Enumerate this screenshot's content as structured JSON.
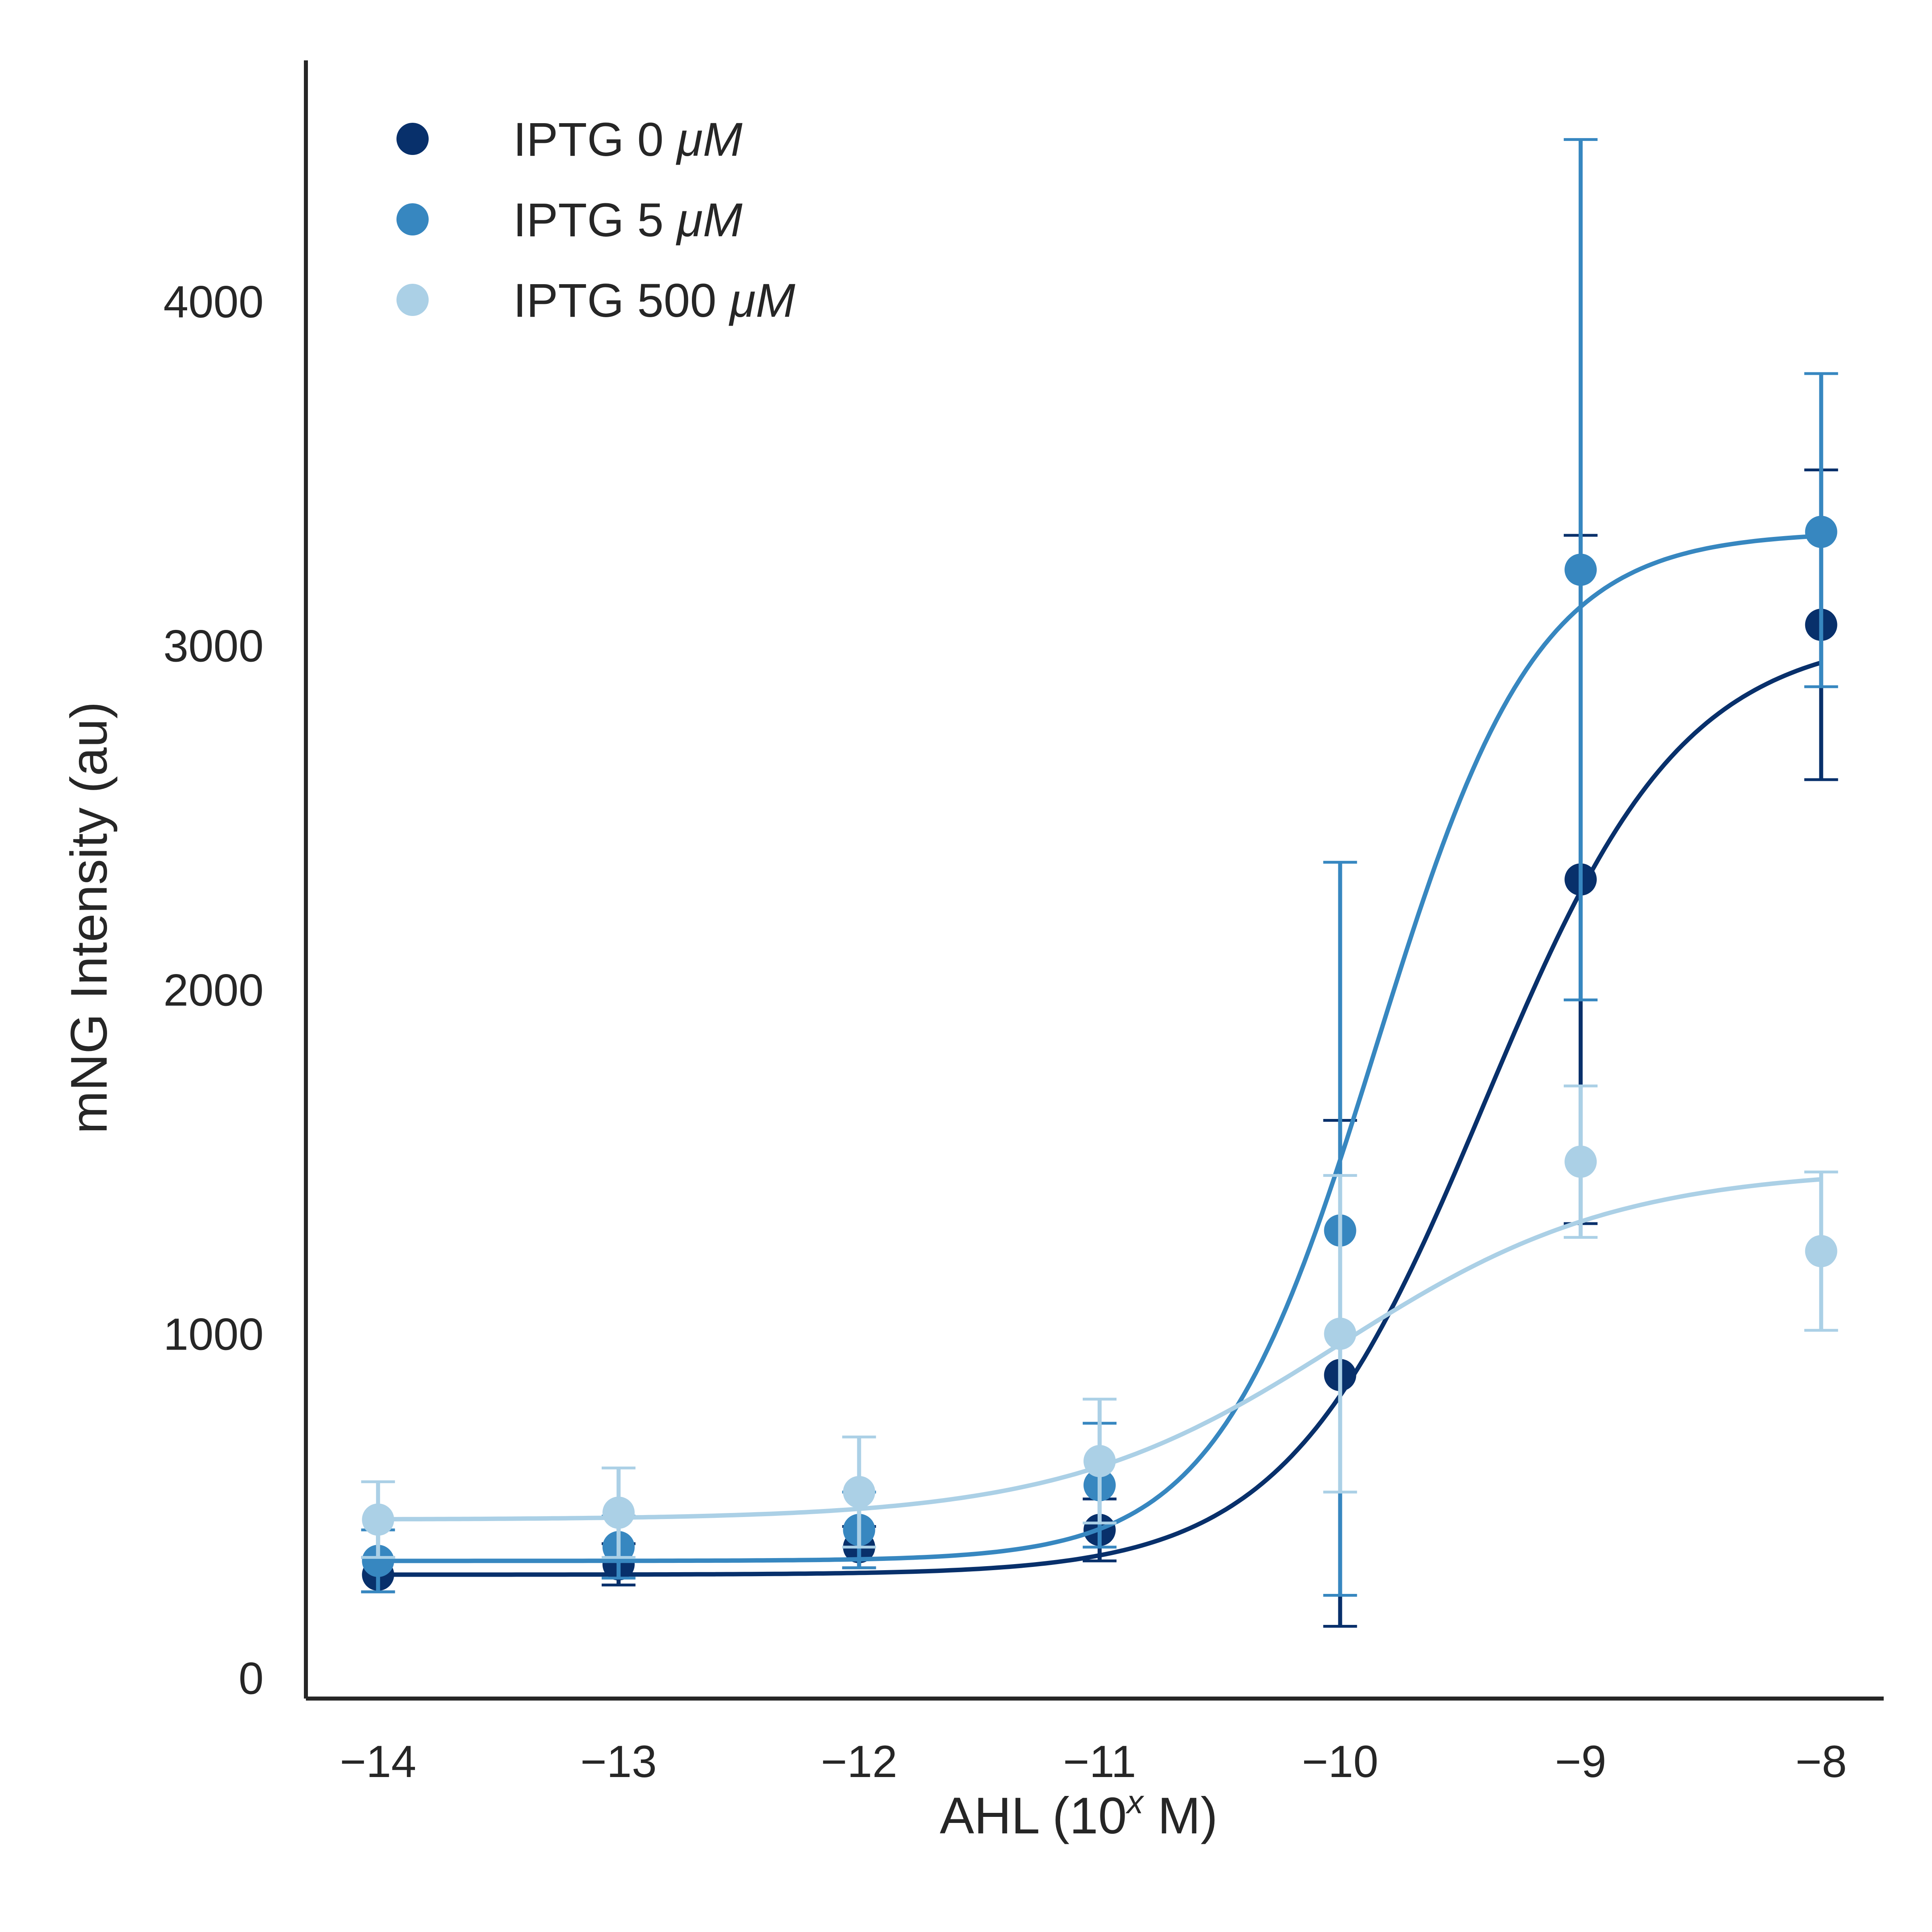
{
  "chart_data": {
    "type": "scatter",
    "xlabel": "AHL (10",
    "xlabel_sup": "x",
    "xlabel_suffix": " M)",
    "ylabel": "mNG Intensity (au)",
    "xlim": [
      -14.3,
      -7.74
    ],
    "ylim": [
      -60,
      4700
    ],
    "x_ticks": [
      -14,
      -13,
      -12,
      -11,
      -10,
      -9,
      -8
    ],
    "x_tick_labels": [
      "−14",
      "−13",
      "−12",
      "−11",
      "−10",
      "−9",
      "−8"
    ],
    "y_ticks": [
      0,
      1000,
      2000,
      3000,
      4000
    ],
    "y_tick_labels": [
      "0",
      "1000",
      "2000",
      "3000",
      "4000"
    ],
    "grid": false,
    "legend_position": "top-left",
    "x": [
      -14,
      -13,
      -12,
      -11,
      -10,
      -9,
      -8
    ],
    "series": [
      {
        "name_prefix": "IPTG 0 ",
        "name_unit": "μM",
        "color": "#08306b",
        "values": [
          300,
          330,
          380,
          430,
          880,
          2320,
          3060
        ],
        "err_low": [
          50,
          60,
          60,
          90,
          730,
          1000,
          450
        ],
        "err_high": [
          50,
          60,
          60,
          90,
          740,
          1000,
          450
        ],
        "fit": {
          "bottom": 300,
          "top": 3040,
          "ec50_log": -9.4,
          "hill": 1.05
        }
      },
      {
        "name_prefix": "IPTG 5 ",
        "name_unit": "μM",
        "color": "#3787c0",
        "values": [
          340,
          380,
          430,
          560,
          1300,
          3220,
          3330
        ],
        "err_low": [
          90,
          90,
          110,
          180,
          1060,
          1250,
          450
        ],
        "err_high": [
          90,
          90,
          110,
          180,
          1070,
          1250,
          460
        ],
        "fit": {
          "bottom": 340,
          "top": 3330,
          "ec50_log": -9.85,
          "hill": 1.3
        }
      },
      {
        "name_prefix": "IPTG 500 ",
        "name_unit": "μM",
        "color": "#abd0e6",
        "values": [
          460,
          480,
          540,
          630,
          1000,
          1500,
          1240
        ],
        "err_low": [
          110,
          130,
          160,
          180,
          460,
          220,
          230
        ],
        "err_high": [
          110,
          130,
          160,
          180,
          460,
          220,
          230
        ],
        "fit": {
          "bottom": 460,
          "top": 1480,
          "ec50_log": -10.0,
          "hill": 0.75
        }
      }
    ]
  }
}
